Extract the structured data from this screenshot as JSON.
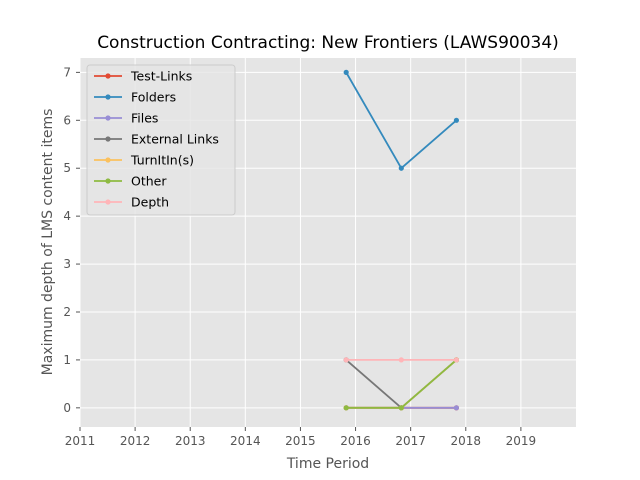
{
  "chart_data": {
    "type": "line",
    "title": "Construction Contracting: New Frontiers (LAWS90034)",
    "xlabel": "Time Period",
    "ylabel": "Maximum depth of LMS content items",
    "xlim": [
      2011,
      2020
    ],
    "ylim": [
      -0.4,
      7.3
    ],
    "xticks": [
      2011,
      2012,
      2013,
      2014,
      2015,
      2016,
      2017,
      2018,
      2019
    ],
    "yticks": [
      0,
      1,
      2,
      3,
      4,
      5,
      6,
      7
    ],
    "grid": true,
    "legend_position": "top-left",
    "x": [
      2015.83,
      2016.83,
      2017.83
    ],
    "series": [
      {
        "name": "Test-Links",
        "color": "#E24A33",
        "values": [
          0,
          0,
          0
        ]
      },
      {
        "name": "Folders",
        "color": "#348ABD",
        "values": [
          7,
          5,
          6
        ]
      },
      {
        "name": "Files",
        "color": "#988ED5",
        "values": [
          0,
          0,
          0
        ]
      },
      {
        "name": "External Links",
        "color": "#777777",
        "values": [
          1,
          0,
          1
        ]
      },
      {
        "name": "TurnItIn(s)",
        "color": "#FBC15E",
        "values": [
          0,
          0,
          1
        ]
      },
      {
        "name": "Other",
        "color": "#8EBA42",
        "values": [
          0,
          0,
          1
        ]
      },
      {
        "name": "Depth",
        "color": "#FFB5B8",
        "values": [
          1,
          1,
          1
        ]
      }
    ]
  }
}
